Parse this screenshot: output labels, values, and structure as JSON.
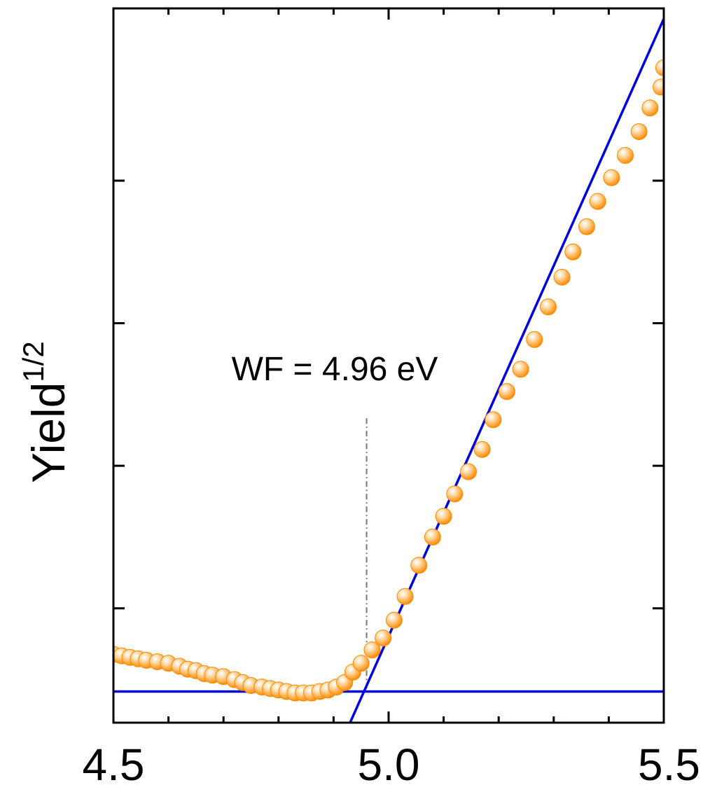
{
  "chart_data": {
    "type": "scatter",
    "ylabel": "Yield",
    "ylabel_superscript": "1/2",
    "xlim": [
      4.5,
      5.5
    ],
    "ylim": [
      -0.21,
      4.6
    ],
    "x_ticks": [
      4.5,
      5.0,
      5.5
    ],
    "x_tick_labels": [
      "4.5",
      "5.0",
      "5.5"
    ],
    "x_minor_ticks": [
      4.6,
      4.7,
      4.8,
      4.9,
      5.1,
      5.2,
      5.3,
      5.4
    ],
    "y_ticks": [
      0.56,
      1.52,
      2.48,
      3.44
    ],
    "y_tick_labels": [
      "",
      "",
      "",
      ""
    ],
    "grid": false,
    "annotation": {
      "text": "WF = 4.96 eV",
      "x": 4.96,
      "line_y_range": [
        0,
        1.84
      ]
    },
    "fit_lines": [
      {
        "x": [
          4.5,
          5.5
        ],
        "y": [
          0,
          0
        ]
      },
      {
        "x": [
          4.93,
          5.5
        ],
        "y": [
          -0.21,
          4.53
        ]
      }
    ],
    "colors": {
      "points": "#ff8a00",
      "points_highlight": "#ffe2b8",
      "fit": "#0000dd",
      "axes": "#000000",
      "guide": "#777777"
    },
    "series": [
      {
        "x": [
          4.5,
          4.515,
          4.53,
          4.545,
          4.56,
          4.58,
          4.6,
          4.62,
          4.635,
          4.65,
          4.665,
          4.68,
          4.7,
          4.72,
          4.735,
          4.75,
          4.77,
          4.785,
          4.8,
          4.815,
          4.83,
          4.845,
          4.86,
          4.875,
          4.89,
          4.905,
          4.92,
          4.935,
          4.95,
          4.97,
          4.99,
          5.01,
          5.03,
          5.055,
          5.08,
          5.1,
          5.12,
          5.145,
          5.17,
          5.19,
          5.215,
          5.24,
          5.265,
          5.29,
          5.315,
          5.335,
          5.36,
          5.38,
          5.405,
          5.43,
          5.455,
          5.475,
          5.495,
          5.5
        ],
        "y": [
          0.25,
          0.24,
          0.23,
          0.22,
          0.21,
          0.2,
          0.19,
          0.17,
          0.15,
          0.14,
          0.12,
          0.11,
          0.1,
          0.08,
          0.06,
          0.04,
          0.03,
          0.02,
          0.01,
          0.0,
          -0.01,
          -0.01,
          -0.01,
          0.0,
          0.01,
          0.03,
          0.06,
          0.13,
          0.19,
          0.28,
          0.36,
          0.48,
          0.64,
          0.85,
          1.04,
          1.18,
          1.33,
          1.48,
          1.63,
          1.83,
          2.02,
          2.17,
          2.37,
          2.59,
          2.79,
          2.96,
          3.13,
          3.3,
          3.46,
          3.61,
          3.77,
          3.93,
          4.07,
          4.2
        ]
      }
    ]
  }
}
